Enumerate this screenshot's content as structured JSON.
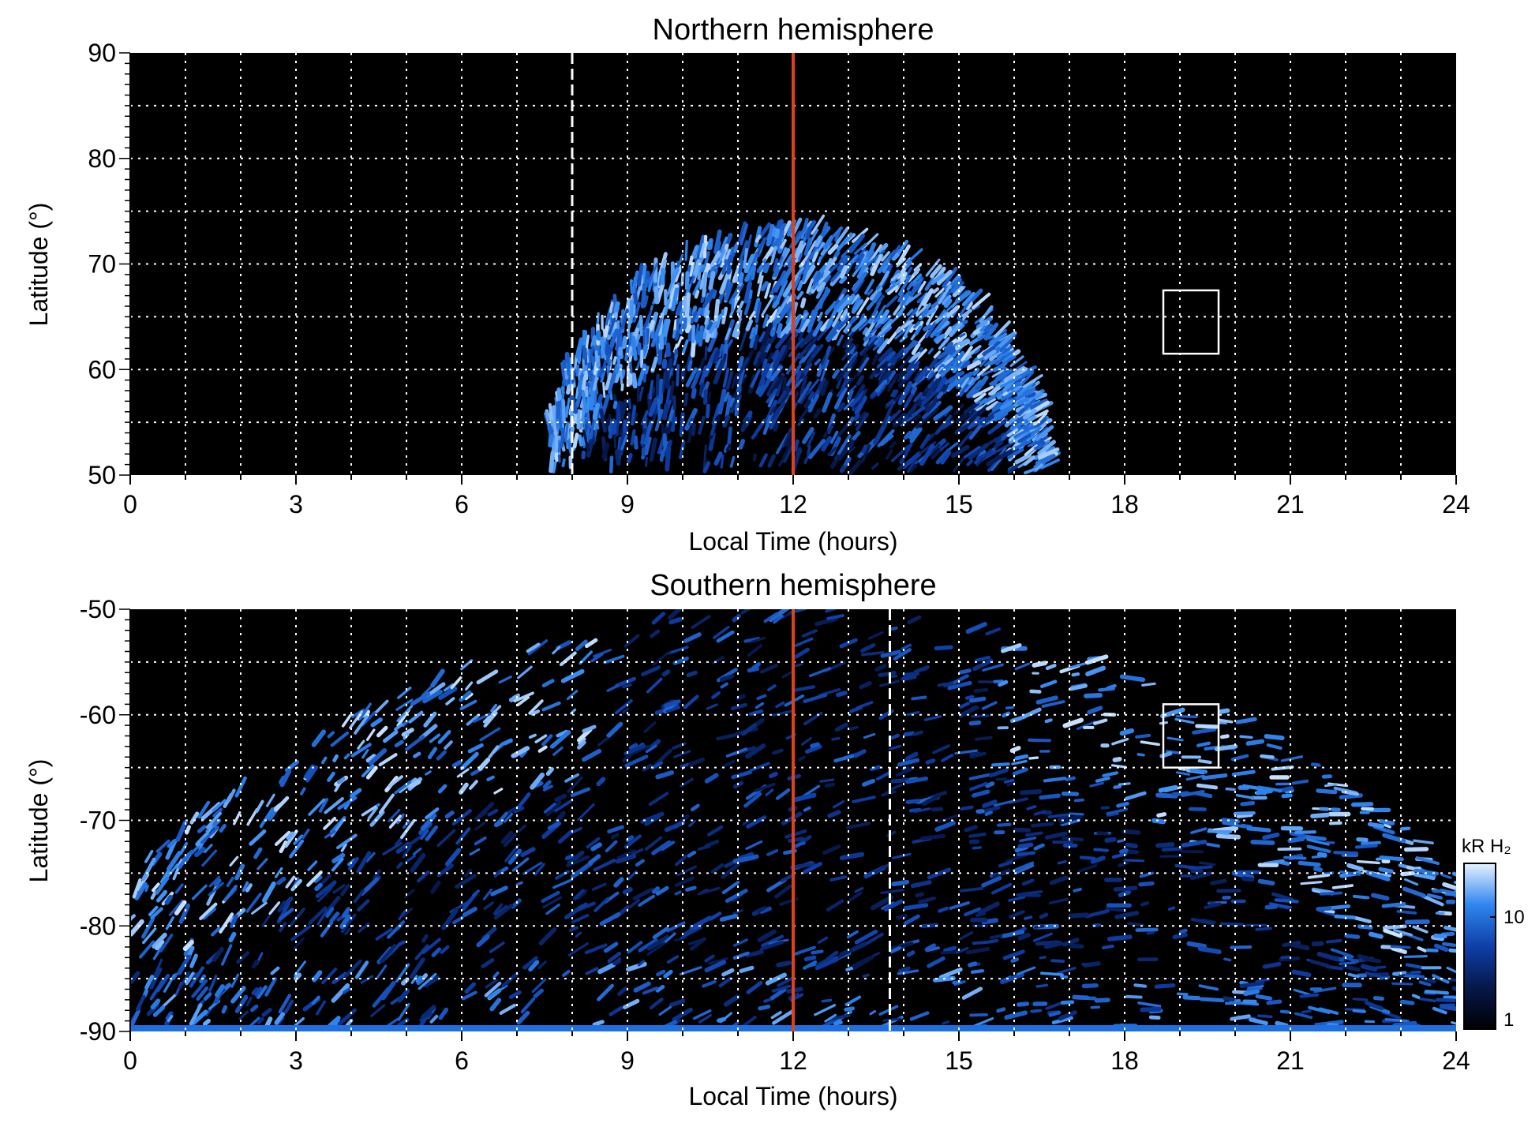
{
  "chart_data": [
    {
      "type": "heatmap",
      "title": "Northern hemisphere",
      "xlabel": "Local Time (hours)",
      "ylabel": "Latitude (°)",
      "xlim": [
        0,
        24
      ],
      "ylim": [
        50,
        90
      ],
      "x_ticks": [
        0,
        3,
        6,
        9,
        12,
        15,
        18,
        21,
        24
      ],
      "y_ticks": [
        50,
        60,
        70,
        80,
        90
      ],
      "grid": true,
      "noon_line_lt": 12,
      "dashed_line_lt": 8,
      "box": {
        "lt": [
          18.7,
          19.7
        ],
        "lat": [
          61.5,
          67.5
        ]
      },
      "emission_extent": {
        "lt_range": [
          7.6,
          16.6
        ],
        "max_lat": 73,
        "bright_oval_lat": [
          62,
          72
        ]
      }
    },
    {
      "type": "heatmap",
      "title": "Southern hemisphere",
      "xlabel": "Local Time (hours)",
      "ylabel": "Latitude (°)",
      "xlim": [
        0,
        24
      ],
      "ylim": [
        -90,
        -50
      ],
      "x_ticks": [
        0,
        3,
        6,
        9,
        12,
        15,
        18,
        21,
        24
      ],
      "y_ticks": [
        -90,
        -80,
        -70,
        -60,
        -50
      ],
      "grid": true,
      "noon_line_lt": 12,
      "dashed_line_lt": 13.75,
      "box": {
        "lt": [
          18.7,
          19.7
        ],
        "lat": [
          -65,
          -59
        ]
      },
      "colorbar": {
        "label": "kR H₂",
        "ticks": [
          "1",
          "10"
        ],
        "scale": "log",
        "range": [
          1,
          30
        ]
      },
      "emission_extent": {
        "lt_range": [
          0,
          24
        ],
        "edge_lat_at_noon": -50,
        "edge_lat_at_midnight": -75
      }
    }
  ],
  "colors": {
    "background": "#000000",
    "emission_dark": "#06184a",
    "emission_mid": "#1f6fe0",
    "emission_bright": "#cfe6ff",
    "noon_line": "#e0401a",
    "grid": "#ffffff"
  }
}
